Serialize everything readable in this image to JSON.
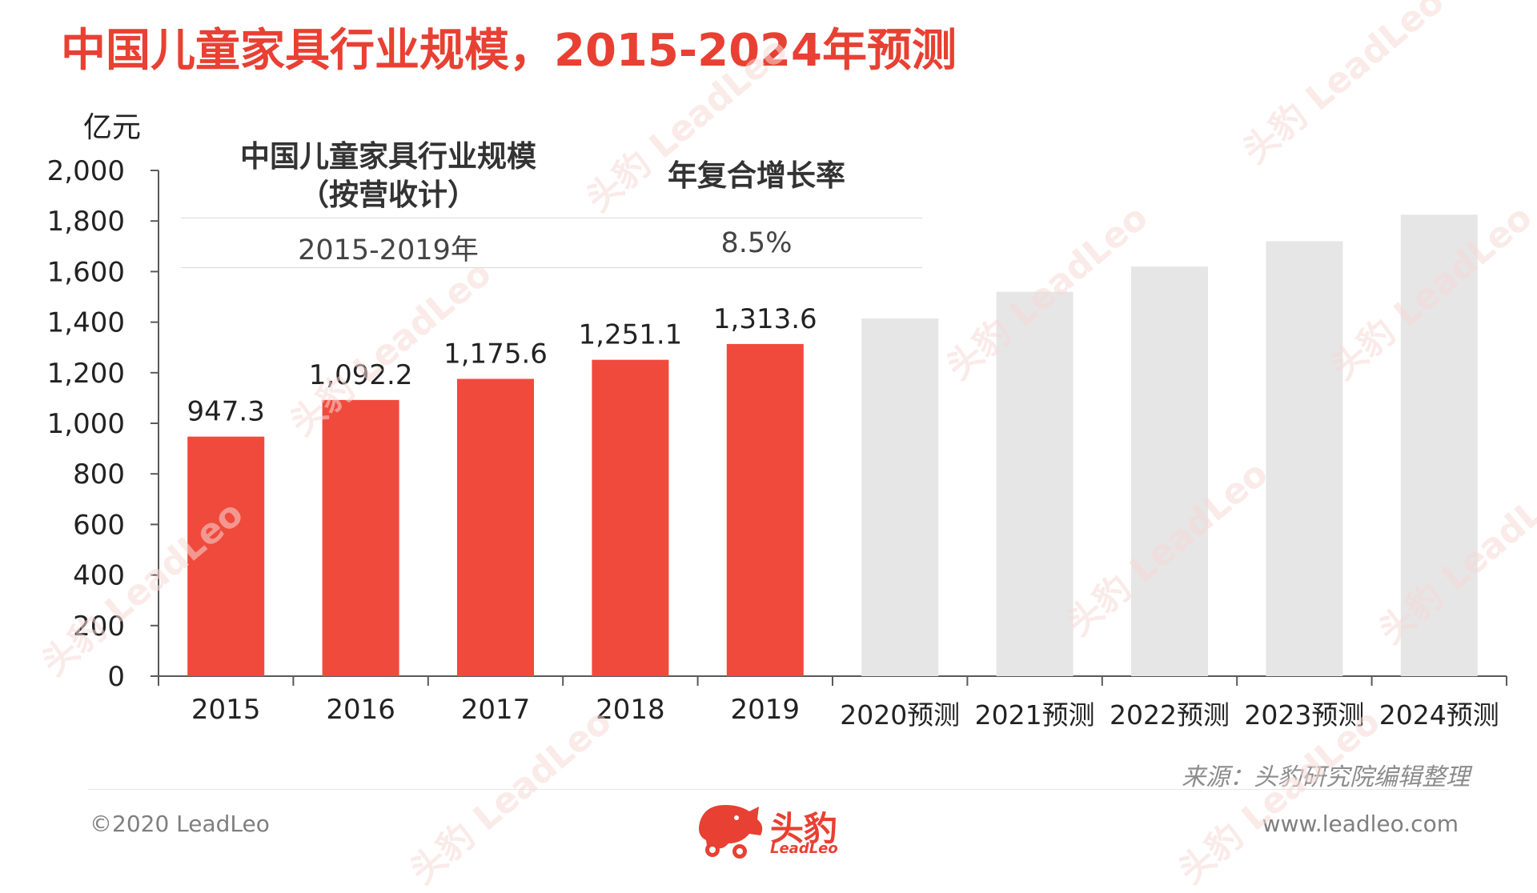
{
  "title": "中国儿童家具行业规模，2015-2024年预测",
  "unit": "亿元",
  "cagr_table": {
    "col1_header_line1": "中国儿童家具行业规模",
    "col1_header_line2": "（按营收计）",
    "col2_header": "年复合增长率",
    "col1_value": "2015-2019年",
    "col2_value": "8.5%"
  },
  "source": "来源：头豹研究院编辑整理",
  "copyright": "©2020 LeadLeo",
  "website": "www.leadleo.com",
  "logo": {
    "name": "头豹",
    "sub": "LeadLeo"
  },
  "watermark_text": "头豹 LeadLeo",
  "colors": {
    "actual": "#f04a3c",
    "forecast": "#e6e6e6",
    "accent": "#e84033"
  },
  "chart_data": {
    "type": "bar",
    "categories": [
      "2015",
      "2016",
      "2017",
      "2018",
      "2019",
      "2020预测",
      "2021预测",
      "2022预测",
      "2023预测",
      "2024预测"
    ],
    "values": [
      947.3,
      1092.2,
      1175.6,
      1251.1,
      1313.6,
      1415,
      1520,
      1620,
      1720,
      1825
    ],
    "data_labels": [
      "947.3",
      "1,092.2",
      "1,175.6",
      "1,251.1",
      "1,313.6",
      "",
      "",
      "",
      "",
      ""
    ],
    "forecast": [
      false,
      false,
      false,
      false,
      false,
      true,
      true,
      true,
      true,
      true
    ],
    "ylim": [
      0,
      2000
    ],
    "yticks": [
      0,
      200,
      400,
      600,
      800,
      1000,
      1200,
      1400,
      1600,
      1800,
      2000
    ],
    "ytick_labels": [
      "0",
      "200",
      "400",
      "600",
      "800",
      "1,000",
      "1,200",
      "1,400",
      "1,600",
      "1,800",
      "2,000"
    ],
    "ylabel": "亿元",
    "xlabel": "",
    "grid": false,
    "legend": "none"
  }
}
